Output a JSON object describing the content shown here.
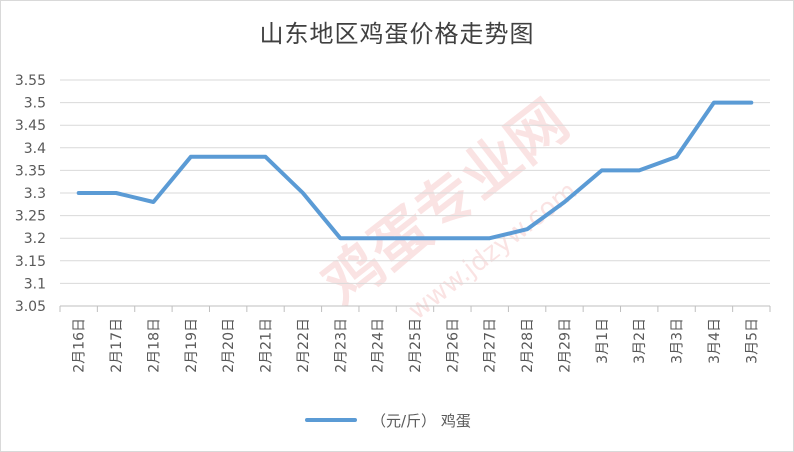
{
  "chart_data": {
    "type": "line",
    "title": "山东地区鸡蛋价格走势图",
    "xlabel": "",
    "ylabel": "",
    "categories": [
      "2月16日",
      "2月17日",
      "2月18日",
      "2月19日",
      "2月20日",
      "2月21日",
      "2月22日",
      "2月23日",
      "2月24日",
      "2月25日",
      "2月26日",
      "2月27日",
      "2月28日",
      "2月29日",
      "3月1日",
      "3月2日",
      "3月3日",
      "3月4日",
      "3月5日"
    ],
    "series": [
      {
        "name": "（元/斤） 鸡蛋",
        "values": [
          3.3,
          3.3,
          3.28,
          3.38,
          3.38,
          3.38,
          3.3,
          3.2,
          3.2,
          3.2,
          3.2,
          3.2,
          3.22,
          3.28,
          3.35,
          3.35,
          3.38,
          3.5,
          3.5
        ],
        "color": "#5b9bd5"
      }
    ],
    "ylim": [
      3.05,
      3.55
    ],
    "yticks": [
      "3.05",
      "3.1",
      "3.15",
      "3.2",
      "3.25",
      "3.3",
      "3.35",
      "3.4",
      "3.45",
      "3.5",
      "3.55"
    ],
    "grid": true,
    "legend": "bottom"
  },
  "watermark": {
    "text": "鸡蛋专业网",
    "url": "www.jdzyw.com"
  }
}
